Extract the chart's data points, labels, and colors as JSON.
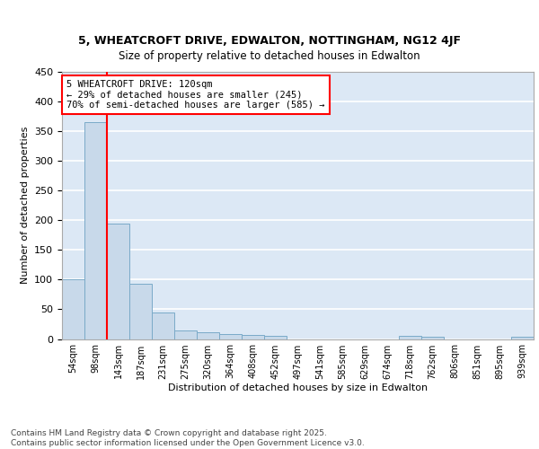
{
  "title1": "5, WHEATCROFT DRIVE, EDWALTON, NOTTINGHAM, NG12 4JF",
  "title2": "Size of property relative to detached houses in Edwalton",
  "xlabel": "Distribution of detached houses by size in Edwalton",
  "ylabel": "Number of detached properties",
  "categories": [
    "54sqm",
    "98sqm",
    "143sqm",
    "187sqm",
    "231sqm",
    "275sqm",
    "320sqm",
    "364sqm",
    "408sqm",
    "452sqm",
    "497sqm",
    "541sqm",
    "585sqm",
    "629sqm",
    "674sqm",
    "718sqm",
    "762sqm",
    "806sqm",
    "851sqm",
    "895sqm",
    "939sqm"
  ],
  "values": [
    100,
    365,
    195,
    93,
    45,
    15,
    11,
    9,
    7,
    5,
    0,
    0,
    0,
    0,
    0,
    5,
    4,
    0,
    0,
    0,
    4
  ],
  "bar_color": "#c8d9ea",
  "bar_edge_color": "#7aaac8",
  "red_line_x": 1.5,
  "annotation_text": "5 WHEATCROFT DRIVE: 120sqm\n← 29% of detached houses are smaller (245)\n70% of semi-detached houses are larger (585) →",
  "annotation_box_color": "white",
  "annotation_box_edge_color": "red",
  "red_line_color": "red",
  "ylim": [
    0,
    450
  ],
  "yticks": [
    0,
    50,
    100,
    150,
    200,
    250,
    300,
    350,
    400,
    450
  ],
  "footer": "Contains HM Land Registry data © Crown copyright and database right 2025.\nContains public sector information licensed under the Open Government Licence v3.0.",
  "bg_color": "#dce8f5",
  "grid_color": "white",
  "title1_fontsize": 9,
  "title2_fontsize": 8.5,
  "ylabel_fontsize": 8,
  "xlabel_fontsize": 8,
  "tick_fontsize": 7,
  "annotation_fontsize": 7.5,
  "footer_fontsize": 6.5
}
